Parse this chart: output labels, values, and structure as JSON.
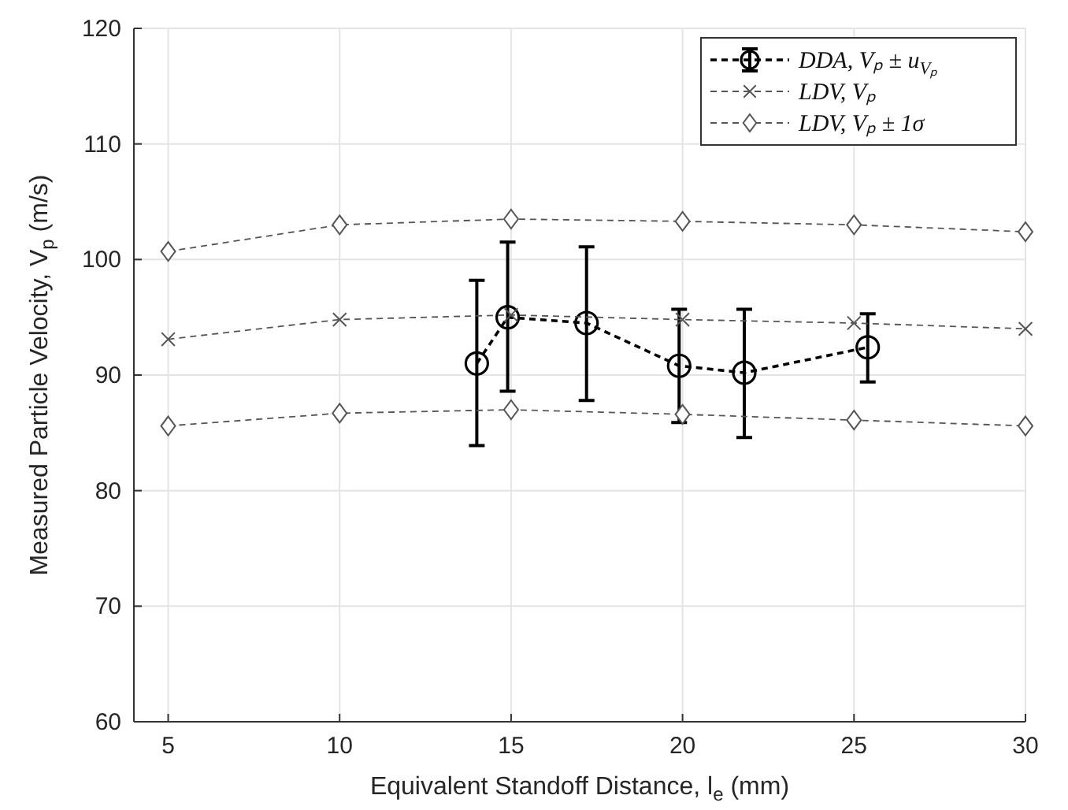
{
  "chart_data": {
    "type": "line",
    "xlabel": "Equivalent Standoff Distance, l$_{e}$ (mm)",
    "ylabel": "Measured Particle Velocity, V$_{p}$ (m/s)",
    "xlim": [
      4,
      30
    ],
    "xticks": [
      5,
      10,
      15,
      20,
      25,
      30
    ],
    "ylim": [
      60,
      120
    ],
    "yticks": [
      60,
      70,
      80,
      90,
      100,
      110,
      120
    ],
    "grid": true,
    "legend": "top right",
    "series": [
      {
        "name": "DDA, Vₚ ± u$_{Vₚ}$",
        "color": "#000000",
        "marker": "circle",
        "line_style": "dashed",
        "x": [
          14,
          14.9,
          17.2,
          19.9,
          21.8,
          25.4
        ],
        "values": [
          91.0,
          95.0,
          94.5,
          90.8,
          90.2,
          92.4
        ],
        "errors": [
          [
            83.9,
            98.2
          ],
          [
            88.6,
            101.5
          ],
          [
            87.8,
            101.1
          ],
          [
            85.9,
            95.7
          ],
          [
            84.6,
            95.7
          ],
          [
            89.4,
            95.3
          ]
        ]
      },
      {
        "name": "LDV, Vₚ",
        "color": "#555555",
        "marker": "cross",
        "line_style": "dashed",
        "x": [
          5,
          10,
          15,
          20,
          25,
          30
        ],
        "values": [
          93.1,
          94.8,
          95.2,
          94.8,
          94.5,
          94.0
        ]
      },
      {
        "name": "LDV, Vₚ ± 1σ",
        "color": "#555555",
        "marker": "diamond",
        "line_style": "dashed",
        "x": [
          5,
          10,
          15,
          20,
          25,
          30
        ],
        "values": [
          100.7,
          103.0,
          103.5,
          103.3,
          103.0,
          102.4
        ]
      },
      {
        "color": "#555555",
        "marker": "diamond",
        "line_style": "dashed",
        "x": [
          5,
          10,
          15,
          20,
          25,
          30
        ],
        "values": [
          85.6,
          86.7,
          87.0,
          86.6,
          86.1,
          85.6
        ]
      }
    ]
  }
}
